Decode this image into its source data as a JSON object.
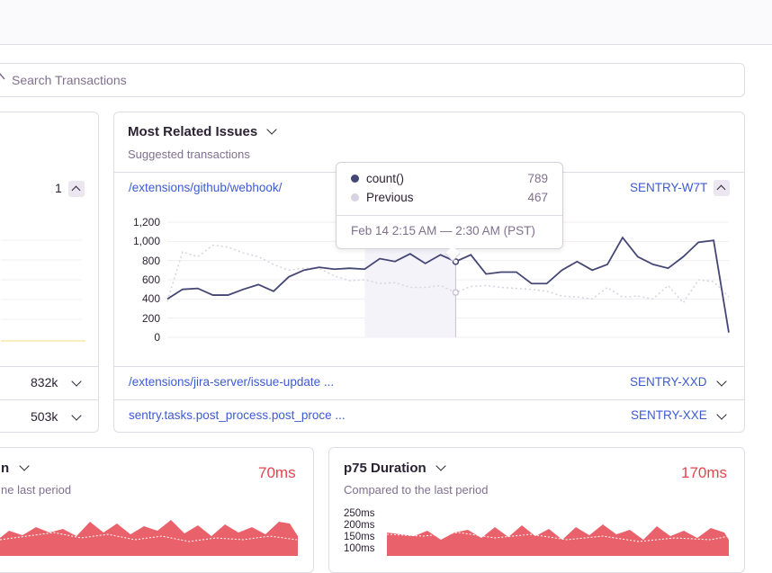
{
  "search": {
    "placeholder": "Search Transactions"
  },
  "left_card": {
    "count": "1",
    "rows": [
      {
        "value": "832k"
      },
      {
        "value": "503k"
      }
    ]
  },
  "main_card": {
    "title": "Most Related Issues",
    "subtitle": "Suggested transactions",
    "items": [
      {
        "transaction": "/extensions/github/webhook/",
        "issue": "SENTRY-W7T"
      },
      {
        "transaction": "/extensions/jira-server/issue-update ...",
        "issue": "SENTRY-XXD"
      },
      {
        "transaction": "sentry.tasks.post_process.post_proce ...",
        "issue": "SENTRY-XXE"
      }
    ]
  },
  "tooltip": {
    "series": [
      {
        "name": "count()",
        "value": "789",
        "color": "#444674"
      },
      {
        "name": "Previous",
        "value": "467",
        "color": "#d8d3e0"
      }
    ],
    "range": "Feb 14 2:15 AM — 2:30 AM (PST)"
  },
  "chart_data": {
    "type": "line",
    "yticks": [
      "1,200",
      "1,000",
      "800",
      "600",
      "400",
      "200",
      "0"
    ],
    "ylim": [
      0,
      1200
    ],
    "series": [
      {
        "name": "count()",
        "color": "#444674",
        "values": [
          400,
          500,
          510,
          440,
          440,
          500,
          550,
          480,
          630,
          700,
          730,
          710,
          720,
          710,
          820,
          790,
          870,
          770,
          860,
          789,
          860,
          660,
          680,
          680,
          560,
          560,
          700,
          790,
          700,
          760,
          1040,
          840,
          760,
          720,
          840,
          990,
          1010,
          50
        ]
      },
      {
        "name": "Previous",
        "color": "#d8d3e0",
        "values": [
          380,
          890,
          840,
          960,
          940,
          880,
          840,
          760,
          700,
          720,
          720,
          640,
          590,
          600,
          560,
          570,
          520,
          520,
          540,
          467,
          530,
          540,
          520,
          510,
          500,
          480,
          430,
          420,
          400,
          520,
          420,
          430,
          400,
          540,
          360,
          600,
          580,
          420
        ]
      }
    ]
  },
  "bottom_left": {
    "title_fragment": "n",
    "subtitle": "ne last period",
    "value": "70ms"
  },
  "bottom_right": {
    "title": "p75 Duration",
    "subtitle": "Compared to the last period",
    "value": "170ms",
    "yticks": [
      "250ms",
      "200ms",
      "150ms",
      "100ms"
    ]
  },
  "colors": {
    "accent": "#3d5bd1",
    "negative": "#e0464f",
    "series": "#444674"
  }
}
